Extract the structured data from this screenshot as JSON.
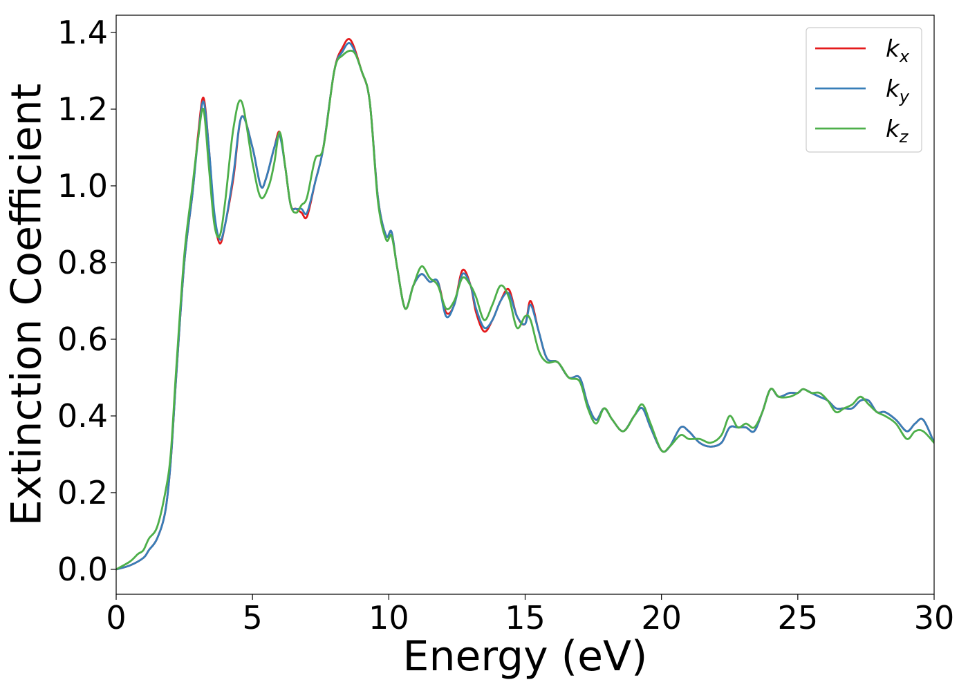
{
  "chart_data": {
    "type": "line",
    "title": "",
    "xlabel": "Energy (eV)",
    "ylabel": "Extinction Coefficient",
    "xlim": [
      0,
      30
    ],
    "ylim": [
      -0.065,
      1.445
    ],
    "xticks": [
      0,
      5,
      10,
      15,
      20,
      25,
      30
    ],
    "xtick_labels": [
      "0",
      "5",
      "10",
      "15",
      "20",
      "25",
      "30"
    ],
    "yticks": [
      0.0,
      0.2,
      0.4,
      0.6,
      0.8,
      1.0,
      1.2,
      1.4
    ],
    "ytick_labels": [
      "0.0",
      "0.2",
      "0.4",
      "0.6",
      "0.8",
      "1.0",
      "1.2",
      "1.4"
    ],
    "grid": false,
    "legend_position": "top-right",
    "series": [
      {
        "name": "kx",
        "label_main": "k",
        "label_sub": "x",
        "color": "#e41a1c",
        "x": [
          0,
          0.5,
          1.0,
          1.2,
          1.5,
          1.8,
          2.0,
          2.2,
          2.5,
          2.8,
          3.0,
          3.2,
          3.4,
          3.6,
          3.8,
          4.0,
          4.3,
          4.6,
          5.0,
          5.3,
          5.5,
          5.8,
          6.0,
          6.2,
          6.4,
          6.6,
          6.8,
          7.0,
          7.3,
          7.6,
          8.0,
          8.3,
          8.6,
          9.0,
          9.3,
          9.6,
          9.9,
          10.1,
          10.3,
          10.6,
          10.9,
          11.2,
          11.5,
          11.8,
          12.1,
          12.4,
          12.7,
          13.0,
          13.2,
          13.5,
          13.8,
          14.1,
          14.4,
          14.7,
          15.0,
          15.2,
          15.5,
          15.8,
          16.2,
          16.6,
          17.0,
          17.3,
          17.6,
          17.9,
          18.2,
          18.6,
          19.0,
          19.3,
          19.6,
          20.0,
          20.3,
          20.7,
          21.0,
          21.4,
          21.8,
          22.2,
          22.5,
          22.8,
          23.1,
          23.4,
          23.7,
          24.0,
          24.3,
          24.7,
          25.0,
          25.2,
          25.5,
          25.8,
          26.1,
          26.4,
          26.7,
          27.0,
          27.3,
          27.6,
          27.9,
          28.2,
          28.6,
          29.0,
          29.3,
          29.6,
          30.0
        ],
        "y": [
          0.0,
          0.01,
          0.03,
          0.05,
          0.08,
          0.15,
          0.28,
          0.5,
          0.8,
          0.98,
          1.13,
          1.23,
          1.1,
          0.92,
          0.85,
          0.9,
          1.02,
          1.18,
          1.1,
          1.0,
          1.02,
          1.1,
          1.14,
          1.05,
          0.95,
          0.94,
          0.93,
          0.92,
          1.01,
          1.1,
          1.3,
          1.36,
          1.38,
          1.3,
          1.22,
          0.97,
          0.87,
          0.88,
          0.79,
          0.68,
          0.74,
          0.77,
          0.75,
          0.75,
          0.67,
          0.69,
          0.78,
          0.74,
          0.67,
          0.62,
          0.65,
          0.7,
          0.73,
          0.66,
          0.64,
          0.7,
          0.62,
          0.55,
          0.54,
          0.5,
          0.5,
          0.43,
          0.39,
          0.42,
          0.39,
          0.36,
          0.4,
          0.42,
          0.37,
          0.31,
          0.32,
          0.37,
          0.36,
          0.33,
          0.32,
          0.33,
          0.37,
          0.37,
          0.37,
          0.36,
          0.41,
          0.47,
          0.45,
          0.46,
          0.46,
          0.47,
          0.46,
          0.45,
          0.44,
          0.42,
          0.42,
          0.42,
          0.44,
          0.44,
          0.41,
          0.41,
          0.39,
          0.36,
          0.38,
          0.39,
          0.33
        ]
      },
      {
        "name": "ky",
        "label_main": "k",
        "label_sub": "y",
        "color": "#377eb8",
        "x": [
          0,
          0.5,
          1.0,
          1.2,
          1.5,
          1.8,
          2.0,
          2.2,
          2.5,
          2.8,
          3.0,
          3.2,
          3.4,
          3.6,
          3.8,
          4.0,
          4.3,
          4.6,
          5.0,
          5.3,
          5.5,
          5.8,
          6.0,
          6.2,
          6.4,
          6.6,
          6.8,
          7.0,
          7.3,
          7.6,
          8.0,
          8.3,
          8.6,
          9.0,
          9.3,
          9.6,
          9.9,
          10.1,
          10.3,
          10.6,
          10.9,
          11.2,
          11.5,
          11.8,
          12.1,
          12.4,
          12.7,
          13.0,
          13.2,
          13.5,
          13.8,
          14.1,
          14.4,
          14.7,
          15.0,
          15.2,
          15.5,
          15.8,
          16.2,
          16.6,
          17.0,
          17.3,
          17.6,
          17.9,
          18.2,
          18.6,
          19.0,
          19.3,
          19.6,
          20.0,
          20.3,
          20.7,
          21.0,
          21.4,
          21.8,
          22.2,
          22.5,
          22.8,
          23.1,
          23.4,
          23.7,
          24.0,
          24.3,
          24.7,
          25.0,
          25.2,
          25.5,
          25.8,
          26.1,
          26.4,
          26.7,
          27.0,
          27.3,
          27.6,
          27.9,
          28.2,
          28.6,
          29.0,
          29.3,
          29.6,
          30.0
        ],
        "y": [
          0.0,
          0.01,
          0.03,
          0.05,
          0.08,
          0.15,
          0.28,
          0.5,
          0.8,
          0.98,
          1.12,
          1.22,
          1.1,
          0.93,
          0.86,
          0.9,
          1.03,
          1.18,
          1.1,
          1.0,
          1.02,
          1.1,
          1.13,
          1.05,
          0.95,
          0.94,
          0.94,
          0.93,
          1.01,
          1.1,
          1.3,
          1.35,
          1.37,
          1.3,
          1.22,
          0.97,
          0.87,
          0.88,
          0.79,
          0.68,
          0.74,
          0.77,
          0.75,
          0.75,
          0.66,
          0.69,
          0.77,
          0.74,
          0.68,
          0.63,
          0.65,
          0.7,
          0.72,
          0.66,
          0.64,
          0.69,
          0.62,
          0.55,
          0.54,
          0.5,
          0.5,
          0.43,
          0.39,
          0.42,
          0.39,
          0.36,
          0.4,
          0.42,
          0.37,
          0.31,
          0.32,
          0.37,
          0.36,
          0.33,
          0.32,
          0.33,
          0.37,
          0.37,
          0.37,
          0.36,
          0.41,
          0.47,
          0.45,
          0.46,
          0.46,
          0.47,
          0.46,
          0.45,
          0.44,
          0.42,
          0.42,
          0.42,
          0.44,
          0.44,
          0.41,
          0.41,
          0.39,
          0.36,
          0.38,
          0.39,
          0.33
        ]
      },
      {
        "name": "kz",
        "label_main": "k",
        "label_sub": "z",
        "color": "#4daf4a",
        "x": [
          0,
          0.5,
          0.8,
          1.0,
          1.2,
          1.5,
          1.8,
          2.0,
          2.2,
          2.5,
          2.8,
          3.0,
          3.2,
          3.4,
          3.6,
          3.8,
          4.0,
          4.3,
          4.6,
          5.0,
          5.3,
          5.6,
          5.8,
          6.0,
          6.2,
          6.4,
          6.6,
          6.8,
          7.0,
          7.3,
          7.6,
          8.0,
          8.3,
          8.7,
          9.0,
          9.3,
          9.6,
          9.9,
          10.1,
          10.3,
          10.6,
          10.9,
          11.2,
          11.5,
          11.8,
          12.1,
          12.4,
          12.7,
          13.0,
          13.2,
          13.5,
          13.8,
          14.1,
          14.4,
          14.7,
          15.0,
          15.2,
          15.5,
          15.8,
          16.2,
          16.6,
          17.0,
          17.3,
          17.6,
          17.9,
          18.2,
          18.6,
          19.0,
          19.3,
          19.6,
          20.0,
          20.3,
          20.7,
          21.0,
          21.4,
          21.8,
          22.2,
          22.5,
          22.8,
          23.1,
          23.4,
          23.7,
          24.0,
          24.3,
          24.7,
          25.0,
          25.2,
          25.5,
          25.8,
          26.1,
          26.4,
          26.7,
          27.0,
          27.3,
          27.6,
          27.9,
          28.2,
          28.6,
          29.0,
          29.3,
          29.6,
          30.0
        ],
        "y": [
          0.0,
          0.02,
          0.04,
          0.05,
          0.08,
          0.11,
          0.2,
          0.3,
          0.52,
          0.82,
          1.0,
          1.12,
          1.2,
          1.05,
          0.9,
          0.87,
          0.96,
          1.15,
          1.22,
          1.06,
          0.97,
          1.0,
          1.06,
          1.14,
          1.05,
          0.95,
          0.93,
          0.95,
          0.97,
          1.07,
          1.1,
          1.3,
          1.34,
          1.35,
          1.3,
          1.22,
          0.96,
          0.86,
          0.87,
          0.79,
          0.68,
          0.74,
          0.79,
          0.76,
          0.74,
          0.68,
          0.7,
          0.76,
          0.74,
          0.71,
          0.65,
          0.69,
          0.74,
          0.71,
          0.63,
          0.66,
          0.65,
          0.57,
          0.54,
          0.54,
          0.5,
          0.49,
          0.42,
          0.38,
          0.42,
          0.39,
          0.36,
          0.4,
          0.43,
          0.38,
          0.31,
          0.32,
          0.35,
          0.34,
          0.34,
          0.33,
          0.35,
          0.4,
          0.37,
          0.38,
          0.37,
          0.41,
          0.47,
          0.45,
          0.45,
          0.46,
          0.47,
          0.46,
          0.46,
          0.44,
          0.41,
          0.42,
          0.43,
          0.45,
          0.43,
          0.41,
          0.4,
          0.38,
          0.34,
          0.36,
          0.36,
          0.33
        ]
      }
    ]
  }
}
